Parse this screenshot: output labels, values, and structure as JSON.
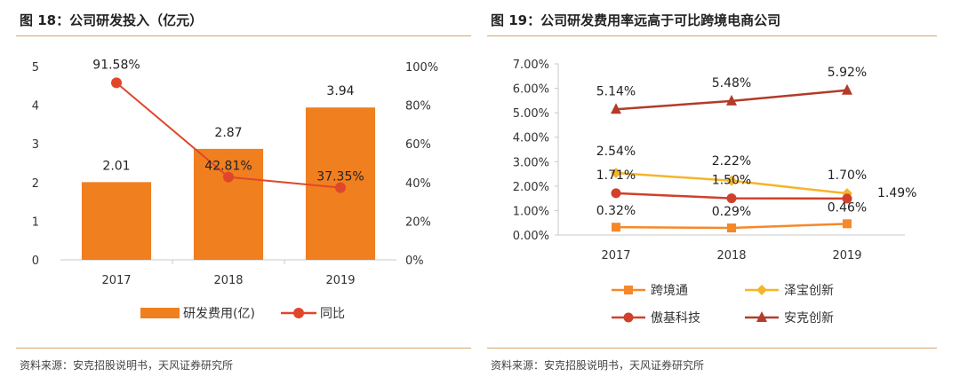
{
  "left": {
    "title": "图 18：公司研发投入（亿元）",
    "source": "资料来源：安克招股说明书，天风证券研究所",
    "chart_data": {
      "type": "bar",
      "categories": [
        "2017",
        "2018",
        "2019"
      ],
      "series": [
        {
          "name": "研发费用(亿)",
          "type": "bar",
          "axis": "left",
          "values": [
            2.01,
            2.87,
            3.94
          ],
          "labels": [
            "2.01",
            "2.87",
            "3.94"
          ],
          "color": "#f07f20"
        },
        {
          "name": "同比",
          "type": "line",
          "axis": "right",
          "values": [
            91.58,
            42.81,
            37.35
          ],
          "labels": [
            "91.58%",
            "42.81%",
            "37.35%"
          ],
          "color": "#e0472a"
        }
      ],
      "y_left": {
        "min": 0,
        "max": 5,
        "ticks": [
          "0",
          "1",
          "2",
          "3",
          "4",
          "5"
        ]
      },
      "y_right": {
        "min": 0,
        "max": 100,
        "ticks": [
          "0%",
          "20%",
          "40%",
          "60%",
          "80%",
          "100%"
        ]
      },
      "legend_position": "bottom"
    }
  },
  "right": {
    "title": "图 19：公司研发费用率远高于可比跨境电商公司",
    "source": "资料来源：安克招股说明书，天风证券研究所",
    "chart_data": {
      "type": "line",
      "categories": [
        "2017",
        "2018",
        "2019"
      ],
      "series": [
        {
          "name": "跨境通",
          "marker": "square",
          "values": [
            0.32,
            0.29,
            0.46
          ],
          "labels": [
            "0.32%",
            "0.29%",
            "0.46%"
          ],
          "color": "#f5882a"
        },
        {
          "name": "泽宝创新",
          "marker": "diamond",
          "values": [
            2.54,
            2.22,
            1.7
          ],
          "labels": [
            "2.54%",
            "2.22%",
            "1.70%"
          ],
          "color": "#f5b52a"
        },
        {
          "name": "傲基科技",
          "marker": "circle",
          "values": [
            1.71,
            1.5,
            1.49
          ],
          "labels": [
            "1.71%",
            "1.50%",
            "1.49%"
          ],
          "color": "#d0402a"
        },
        {
          "name": "安克创新",
          "marker": "triangle",
          "values": [
            5.14,
            5.48,
            5.92
          ],
          "labels": [
            "5.14%",
            "5.48%",
            "5.92%"
          ],
          "color": "#b23b2a"
        }
      ],
      "y": {
        "min": 0,
        "max": 7,
        "ticks": [
          "0.00%",
          "1.00%",
          "2.00%",
          "3.00%",
          "4.00%",
          "5.00%",
          "6.00%",
          "7.00%"
        ]
      },
      "legend_position": "bottom"
    }
  }
}
